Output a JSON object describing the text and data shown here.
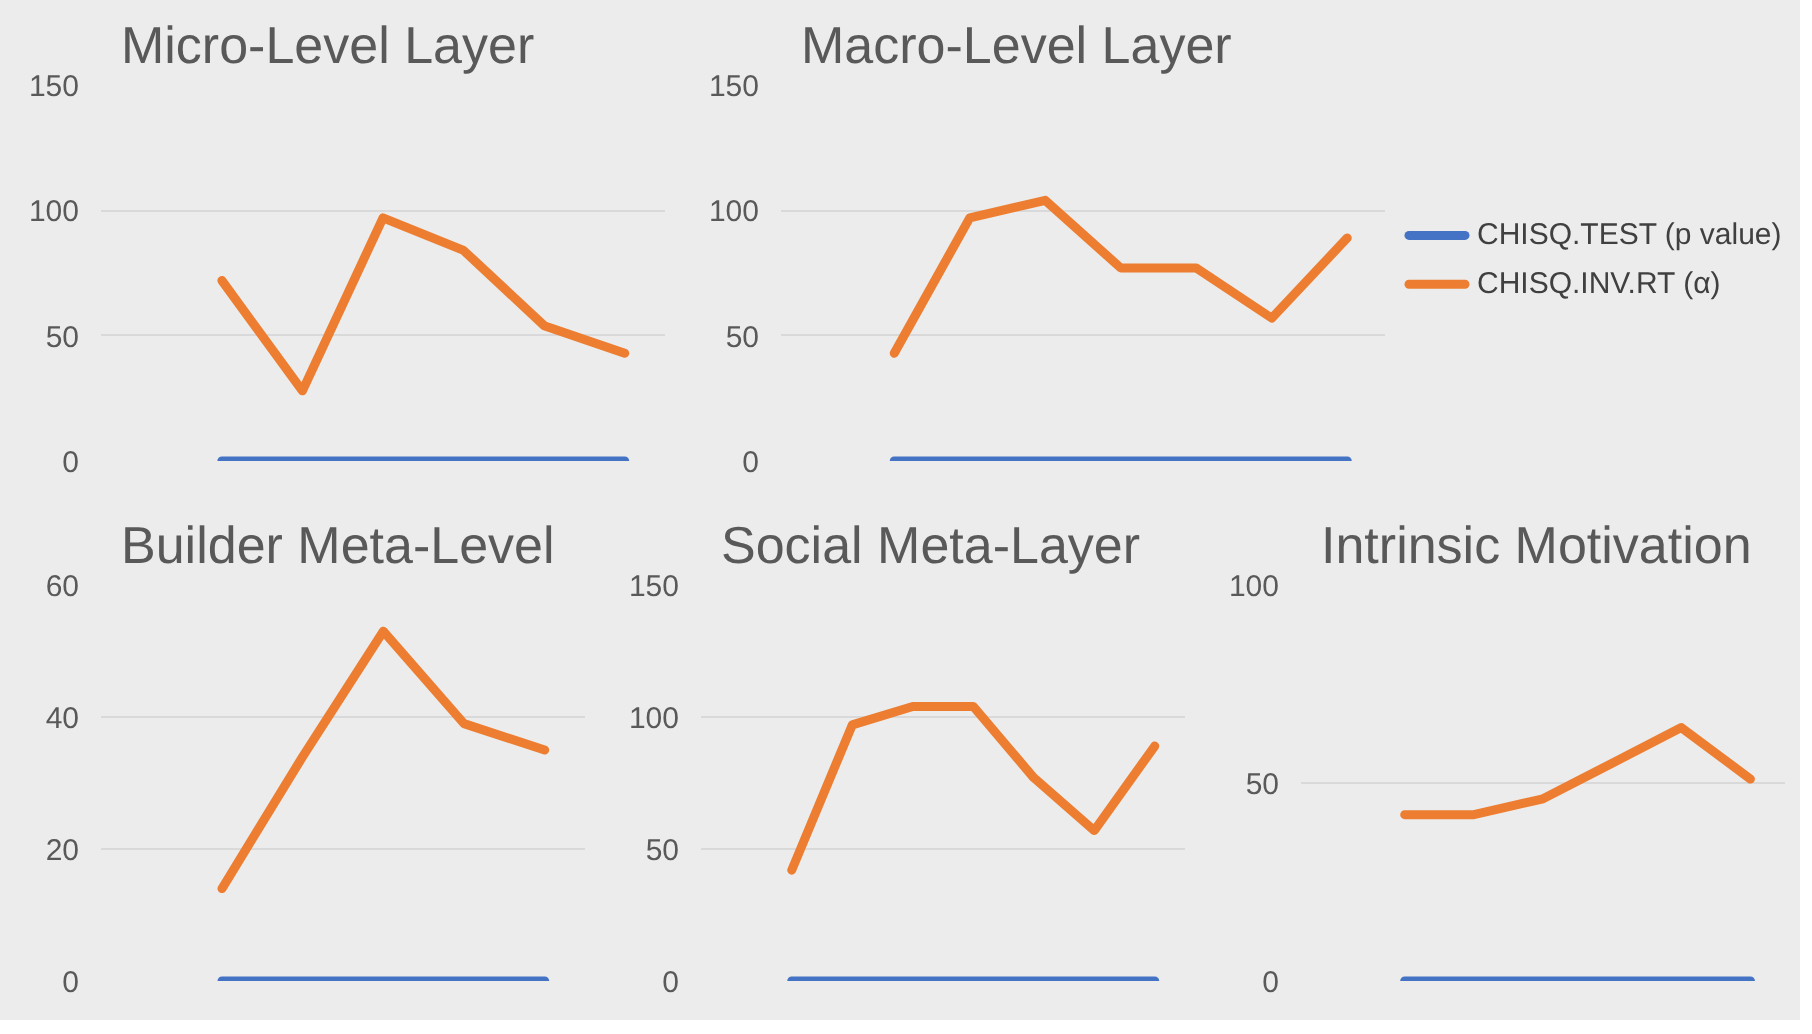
{
  "chart_data": [
    {
      "type": "line",
      "title": "Micro-Level Layer",
      "categories": [
        null,
        null,
        null,
        null,
        null,
        null,
        null
      ],
      "ylim": [
        0,
        150
      ],
      "yticks": [
        0,
        50,
        100,
        150
      ],
      "grid": "y",
      "tick_labels": "y",
      "series": [
        {
          "color": "#4472c4",
          "values": [
            null,
            0,
            0,
            0,
            0,
            0,
            0
          ]
        },
        {
          "color": "#ed7d31",
          "values": [
            null,
            72,
            28,
            97,
            84,
            54,
            43
          ]
        }
      ]
    },
    {
      "type": "line",
      "title": "Macro-Level Layer",
      "categories": [
        null,
        null,
        null,
        null,
        null,
        null,
        null,
        null
      ],
      "ylim": [
        0,
        150
      ],
      "yticks": [
        0,
        50,
        100,
        150
      ],
      "grid": "y",
      "tick_labels": "y",
      "legend": "right",
      "series": [
        {
          "name": "CHISQ.TEST (p value)",
          "color": "#4472c4",
          "values": [
            null,
            0,
            0,
            0,
            0,
            0,
            0,
            0
          ]
        },
        {
          "name": "CHISQ.INV.RT (α)",
          "color": "#ed7d31",
          "values": [
            null,
            43,
            97,
            104,
            77,
            77,
            57,
            89
          ]
        }
      ]
    },
    {
      "type": "line",
      "title": "Builder Meta-Level",
      "categories": [
        null,
        null,
        null,
        null,
        null,
        null
      ],
      "ylim": [
        0,
        60
      ],
      "yticks": [
        0,
        20,
        40,
        60
      ],
      "grid": "y",
      "tick_labels": "y",
      "series": [
        {
          "color": "#4472c4",
          "values": [
            null,
            0,
            0,
            0,
            0,
            0
          ]
        },
        {
          "color": "#ed7d31",
          "values": [
            null,
            14,
            34,
            53,
            39,
            35
          ]
        }
      ]
    },
    {
      "type": "line",
      "title": "Social Meta-Layer",
      "categories": [
        null,
        null,
        null,
        null,
        null,
        null,
        null,
        null
      ],
      "ylim": [
        0,
        150
      ],
      "yticks": [
        0,
        50,
        100,
        150
      ],
      "grid": "y",
      "tick_labels": "y",
      "series": [
        {
          "color": "#4472c4",
          "values": [
            null,
            0,
            0,
            0,
            0,
            0,
            0,
            0
          ]
        },
        {
          "color": "#ed7d31",
          "values": [
            null,
            42,
            97,
            104,
            104,
            77,
            57,
            89
          ]
        }
      ]
    },
    {
      "type": "line",
      "title": "Intrinsic Motivation",
      "categories": [
        null,
        null,
        null,
        null,
        null,
        null,
        null
      ],
      "ylim": [
        0,
        100
      ],
      "yticks": [
        0,
        50,
        100
      ],
      "grid": "y",
      "tick_labels": "y",
      "series": [
        {
          "color": "#4472c4",
          "values": [
            null,
            0,
            0,
            0,
            0,
            0,
            0
          ]
        },
        {
          "color": "#ed7d31",
          "values": [
            null,
            42,
            42,
            46,
            55,
            64,
            51
          ]
        }
      ]
    }
  ]
}
